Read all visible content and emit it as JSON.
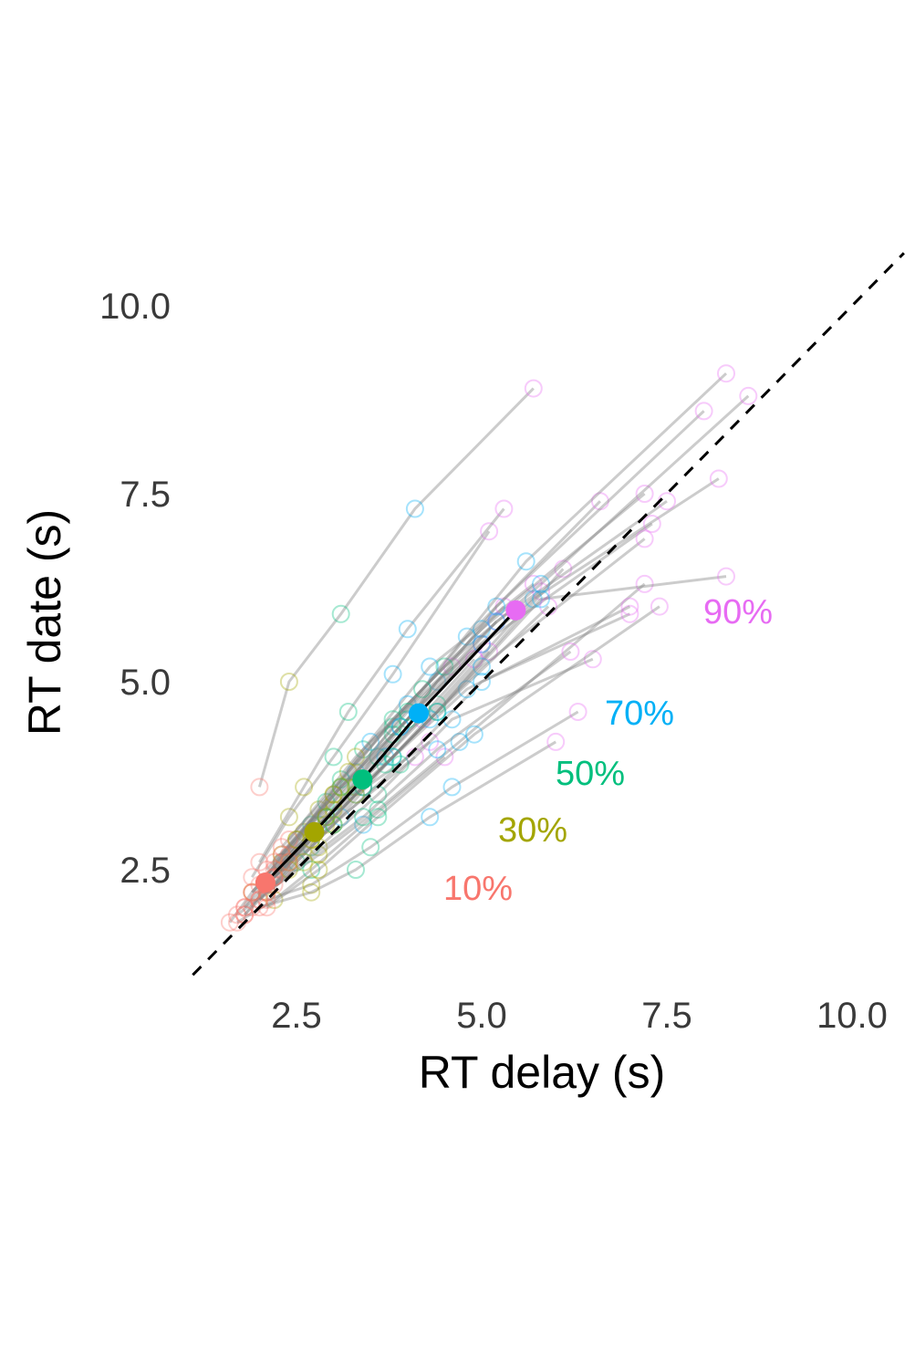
{
  "chart_data": {
    "type": "scatter",
    "xlabel": "RT delay (s)",
    "ylabel": "RT date (s)",
    "xlim": [
      1.1,
      10.7
    ],
    "ylim": [
      1.1,
      10.5
    ],
    "x_ticks": [
      "2.5",
      "5.0",
      "7.5",
      "10.0"
    ],
    "y_ticks": [
      "2.5",
      "5.0",
      "7.5",
      "10.0"
    ],
    "grid": false,
    "reference_line": "identity (dashed)",
    "quantile_colors": {
      "10%": "#F8766D",
      "30%": "#A3A500",
      "50%": "#00BF7D",
      "70%": "#00B0F6",
      "90%": "#E76BF3"
    },
    "group_means": [
      {
        "label": "10%",
        "x": 2.08,
        "y": 2.33,
        "color": "#F8766D"
      },
      {
        "label": "30%",
        "x": 2.74,
        "y": 3.0,
        "color": "#A3A500"
      },
      {
        "label": "50%",
        "x": 3.39,
        "y": 3.7,
        "color": "#00BF7D"
      },
      {
        "label": "70%",
        "x": 4.15,
        "y": 4.58,
        "color": "#00B0F6"
      },
      {
        "label": "90%",
        "x": 5.46,
        "y": 5.95,
        "color": "#E76BF3"
      }
    ],
    "participants": [
      [
        [
          1.9,
          2.0
        ],
        [
          2.3,
          2.6
        ],
        [
          2.7,
          3.1
        ],
        [
          3.3,
          3.8
        ],
        [
          4.2,
          4.5
        ]
      ],
      [
        [
          1.6,
          1.8
        ],
        [
          1.9,
          2.2
        ],
        [
          2.3,
          2.6
        ],
        [
          2.8,
          3.1
        ],
        [
          3.4,
          3.6
        ]
      ],
      [
        [
          2.1,
          2.5
        ],
        [
          2.8,
          3.3
        ],
        [
          3.4,
          4.1
        ],
        [
          4.3,
          5.2
        ],
        [
          5.7,
          6.3
        ]
      ],
      [
        [
          1.8,
          1.9
        ],
        [
          2.2,
          2.4
        ],
        [
          2.7,
          2.8
        ],
        [
          3.3,
          3.5
        ],
        [
          4.3,
          4.2
        ]
      ],
      [
        [
          2.2,
          2.3
        ],
        [
          2.9,
          3.2
        ],
        [
          3.6,
          4.0
        ],
        [
          4.4,
          5.0
        ],
        [
          5.8,
          6.2
        ]
      ],
      [
        [
          1.9,
          2.2
        ],
        [
          2.5,
          2.9
        ],
        [
          3.1,
          3.7
        ],
        [
          4.0,
          4.7
        ],
        [
          5.3,
          6.0
        ]
      ],
      [
        [
          1.7,
          1.9
        ],
        [
          2.1,
          2.2
        ],
        [
          2.5,
          2.6
        ],
        [
          3.1,
          3.2
        ],
        [
          4.1,
          4.0
        ]
      ],
      [
        [
          2.0,
          2.3
        ],
        [
          2.6,
          3.0
        ],
        [
          3.2,
          3.6
        ],
        [
          3.9,
          4.4
        ],
        [
          5.0,
          5.5
        ]
      ],
      [
        [
          2.3,
          2.5
        ],
        [
          3.0,
          3.4
        ],
        [
          3.8,
          4.4
        ],
        [
          4.8,
          5.6
        ],
        [
          6.6,
          7.4
        ]
      ],
      [
        [
          1.8,
          2.0
        ],
        [
          2.3,
          2.7
        ],
        [
          2.9,
          3.4
        ],
        [
          3.5,
          4.2
        ],
        [
          4.6,
          5.2
        ]
      ],
      [
        [
          2.0,
          2.1
        ],
        [
          2.7,
          2.9
        ],
        [
          3.4,
          3.6
        ],
        [
          4.4,
          4.6
        ],
        [
          6.1,
          6.5
        ]
      ],
      [
        [
          1.9,
          2.4
        ],
        [
          2.4,
          3.2
        ],
        [
          3.0,
          4.0
        ],
        [
          3.8,
          5.1
        ],
        [
          5.1,
          7.0
        ]
      ],
      [
        [
          2.1,
          2.2
        ],
        [
          2.8,
          2.8
        ],
        [
          3.6,
          3.5
        ],
        [
          4.6,
          4.5
        ],
        [
          6.5,
          5.3
        ]
      ],
      [
        [
          2.2,
          2.4
        ],
        [
          3.0,
          3.1
        ],
        [
          3.9,
          3.9
        ],
        [
          5.0,
          5.0
        ],
        [
          7.0,
          5.9
        ]
      ],
      [
        [
          1.7,
          1.8
        ],
        [
          2.2,
          2.1
        ],
        [
          2.7,
          2.5
        ],
        [
          3.4,
          3.1
        ],
        [
          4.5,
          4.0
        ]
      ],
      [
        [
          2.0,
          2.6
        ],
        [
          2.6,
          3.6
        ],
        [
          3.2,
          4.6
        ],
        [
          4.0,
          5.7
        ],
        [
          5.3,
          7.3
        ]
      ],
      [
        [
          2.4,
          2.7
        ],
        [
          3.3,
          3.6
        ],
        [
          4.4,
          4.7
        ],
        [
          5.7,
          6.1
        ],
        [
          8.2,
          7.7
        ]
      ],
      [
        [
          2.1,
          2.2
        ],
        [
          2.8,
          2.7
        ],
        [
          3.6,
          3.3
        ],
        [
          4.7,
          4.2
        ],
        [
          7.2,
          6.3
        ]
      ],
      [
        [
          1.8,
          2.0
        ],
        [
          2.4,
          2.6
        ],
        [
          2.9,
          3.2
        ],
        [
          3.7,
          4.0
        ],
        [
          4.9,
          5.3
        ]
      ],
      [
        [
          2.3,
          2.6
        ],
        [
          3.0,
          3.5
        ],
        [
          3.8,
          4.5
        ],
        [
          5.0,
          5.7
        ],
        [
          7.2,
          7.5
        ]
      ],
      [
        [
          2.2,
          2.6
        ],
        [
          3.0,
          3.5
        ],
        [
          4.0,
          4.5
        ],
        [
          5.2,
          6.0
        ],
        [
          8.0,
          8.6
        ]
      ],
      [
        [
          2.4,
          2.9
        ],
        [
          3.3,
          4.0
        ],
        [
          4.5,
          5.2
        ],
        [
          5.8,
          6.3
        ],
        [
          8.6,
          8.8
        ]
      ],
      [
        [
          2.3,
          2.8
        ],
        [
          3.2,
          3.8
        ],
        [
          4.2,
          4.9
        ],
        [
          5.6,
          6.6
        ],
        [
          8.3,
          9.1
        ]
      ],
      [
        [
          2.0,
          3.6
        ],
        [
          2.4,
          5.0
        ],
        [
          3.1,
          5.9
        ],
        [
          4.1,
          7.3
        ],
        [
          5.7,
          8.9
        ]
      ],
      [
        [
          2.1,
          2.1
        ],
        [
          2.7,
          2.3
        ],
        [
          3.5,
          2.8
        ],
        [
          4.6,
          3.6
        ],
        [
          6.3,
          4.6
        ]
      ],
      [
        [
          2.0,
          2.0
        ],
        [
          2.7,
          2.2
        ],
        [
          3.3,
          2.5
        ],
        [
          4.3,
          3.2
        ],
        [
          6.0,
          4.2
        ]
      ],
      [
        [
          2.2,
          2.4
        ],
        [
          2.9,
          3.1
        ],
        [
          3.7,
          3.9
        ],
        [
          4.8,
          4.9
        ],
        [
          7.0,
          6.0
        ]
      ],
      [
        [
          1.8,
          1.9
        ],
        [
          2.4,
          2.5
        ],
        [
          3.0,
          3.1
        ],
        [
          3.8,
          4.0
        ],
        [
          5.1,
          5.4
        ]
      ],
      [
        [
          2.1,
          2.0
        ],
        [
          2.8,
          2.5
        ],
        [
          3.6,
          3.2
        ],
        [
          4.9,
          4.3
        ],
        [
          7.4,
          6.0
        ]
      ],
      [
        [
          2.2,
          2.5
        ],
        [
          3.0,
          3.3
        ],
        [
          3.8,
          4.3
        ],
        [
          5.0,
          5.5
        ],
        [
          7.3,
          7.1
        ]
      ],
      [
        [
          1.9,
          2.2
        ],
        [
          2.5,
          2.9
        ],
        [
          3.1,
          3.6
        ],
        [
          3.9,
          4.4
        ],
        [
          5.2,
          5.8
        ]
      ],
      [
        [
          2.0,
          2.1
        ],
        [
          2.6,
          2.6
        ],
        [
          3.4,
          3.2
        ],
        [
          4.4,
          4.1
        ],
        [
          6.2,
          5.4
        ]
      ],
      [
        [
          2.3,
          2.7
        ],
        [
          3.1,
          3.6
        ],
        [
          4.0,
          4.6
        ],
        [
          5.2,
          5.8
        ],
        [
          7.5,
          7.4
        ]
      ],
      [
        [
          2.1,
          2.3
        ],
        [
          2.7,
          2.9
        ],
        [
          3.4,
          3.6
        ],
        [
          4.3,
          4.5
        ],
        [
          5.9,
          6.0
        ]
      ],
      [
        [
          2.2,
          2.4
        ],
        [
          2.9,
          3.2
        ],
        [
          3.8,
          4.0
        ],
        [
          5.0,
          5.2
        ],
        [
          7.2,
          6.9
        ]
      ],
      [
        [
          2.4,
          2.6
        ],
        [
          3.3,
          3.5
        ],
        [
          4.4,
          4.6
        ],
        [
          5.8,
          6.1
        ],
        [
          8.3,
          6.4
        ]
      ]
    ]
  }
}
